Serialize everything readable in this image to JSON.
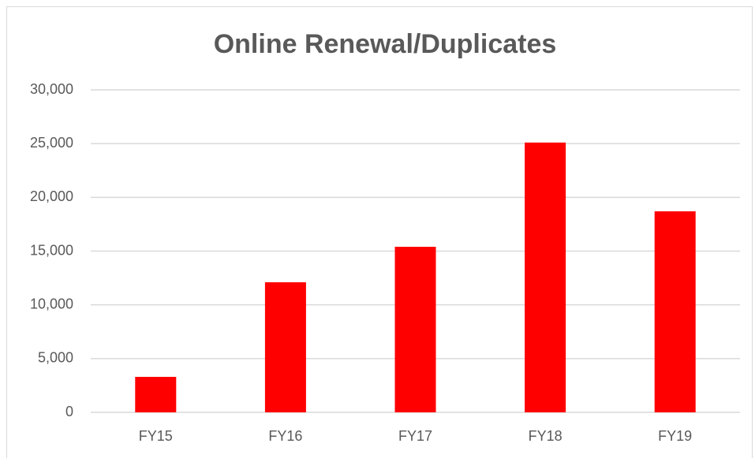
{
  "chart_data": {
    "type": "bar",
    "title": "Online Renewal/Duplicates",
    "categories": [
      "FY15",
      "FY16",
      "FY17",
      "FY18",
      "FY19"
    ],
    "values": [
      3300,
      12100,
      15400,
      25100,
      18700
    ],
    "color": "#ff0000",
    "ylim": [
      0,
      30000
    ],
    "yticks": [
      0,
      {
        "value": 5000,
        "label": "5,000"
      },
      {
        "value": 10000,
        "label": "10,000"
      },
      {
        "value": 15000,
        "label": "15,000"
      },
      {
        "value": 20000,
        "label": "20,000"
      },
      {
        "value": 25000,
        "label": "25,000"
      },
      {
        "value": 30000,
        "label": "30,000"
      }
    ],
    "grid": true
  }
}
